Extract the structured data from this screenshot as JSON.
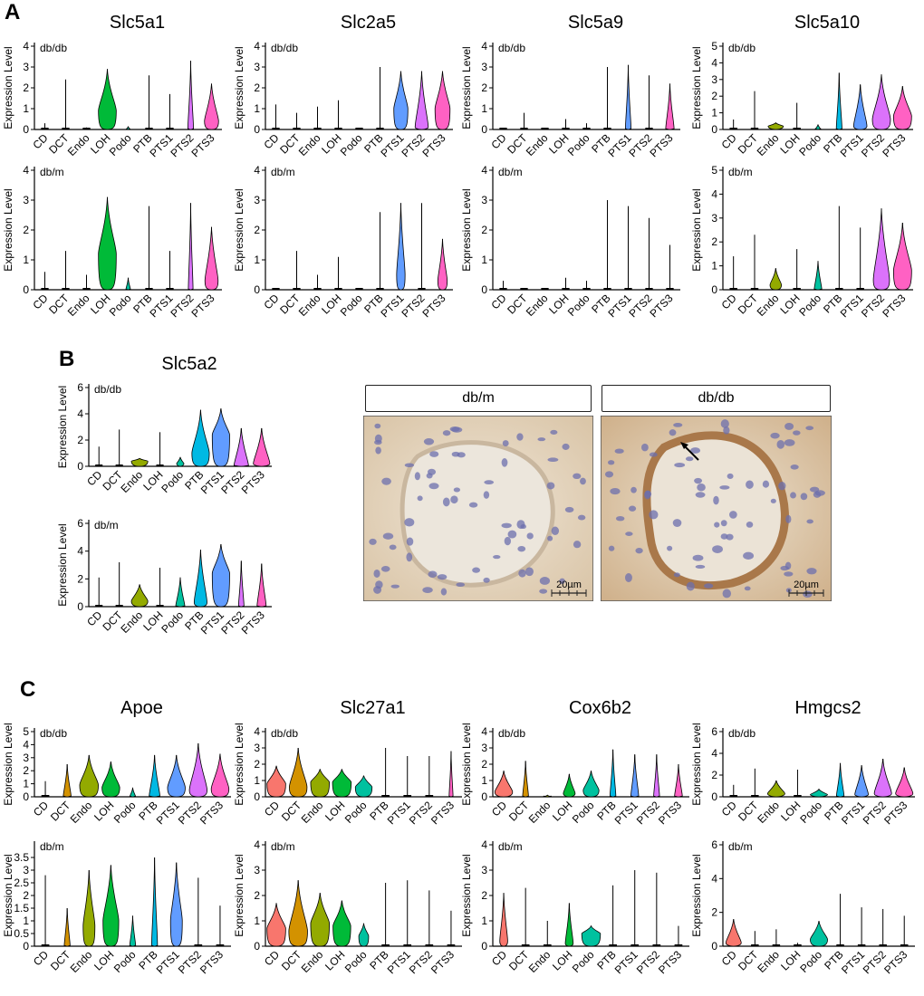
{
  "figure": {
    "panel_labels": {
      "a": "A",
      "b": "B",
      "c": "C"
    },
    "y_axis_label": "Expression Level",
    "cell_types": [
      "CD",
      "DCT",
      "Endo",
      "LOH",
      "Podo",
      "PTB",
      "PTS1",
      "PTS2",
      "PTS3"
    ],
    "colors": {
      "CD": "#F8766D",
      "DCT": "#D39200",
      "Endo": "#93AA00",
      "LOH": "#00BA38",
      "Podo": "#00C19F",
      "PTB": "#00B9E3",
      "PTS1": "#619CFF",
      "PTS2": "#DB72FB",
      "PTS3": "#FF61C3"
    }
  },
  "micrographs": {
    "left_header": "db/m",
    "right_header": "db/db",
    "scale_bar_text": "20µm"
  },
  "chart_data": [
    {
      "type": "violin",
      "gene": "Slc5a1",
      "condition": "db/db",
      "ylim": [
        0,
        4
      ],
      "yticks": [
        0,
        1,
        2,
        3,
        4
      ],
      "max": [
        0.3,
        2.4,
        0.1,
        2.9,
        0.15,
        2.6,
        1.7,
        3.3,
        2.2
      ],
      "width": [
        0.05,
        0.05,
        0.08,
        0.95,
        0.2,
        0.05,
        0.05,
        0.3,
        0.75
      ],
      "peak": [
        0,
        0,
        0,
        0.9,
        0,
        0,
        0,
        0,
        0.4
      ]
    },
    {
      "type": "violin",
      "gene": "Slc5a1",
      "condition": "db/m",
      "ylim": [
        0,
        4
      ],
      "yticks": [
        0,
        1,
        2,
        3,
        4
      ],
      "max": [
        0.6,
        1.3,
        0.5,
        3.1,
        0.4,
        2.8,
        1.3,
        2.9,
        2.1
      ],
      "width": [
        0.05,
        0.05,
        0.05,
        0.95,
        0.25,
        0.05,
        0.05,
        0.25,
        0.7
      ],
      "peak": [
        0,
        0,
        0,
        1.2,
        0,
        0,
        0,
        0,
        0.3
      ]
    },
    {
      "type": "violin",
      "gene": "Slc2a5",
      "condition": "db/db",
      "ylim": [
        0,
        4
      ],
      "yticks": [
        0,
        1,
        2,
        3,
        4
      ],
      "max": [
        1.2,
        0.8,
        1.1,
        1.4,
        0.05,
        3.0,
        2.8,
        2.8,
        2.8
      ],
      "width": [
        0.05,
        0.05,
        0.05,
        0.05,
        0.05,
        0.05,
        0.75,
        0.7,
        0.8
      ],
      "peak": [
        0,
        0,
        0,
        0,
        0,
        0,
        1.0,
        0.1,
        1.0
      ]
    },
    {
      "type": "violin",
      "gene": "Slc2a5",
      "condition": "db/m",
      "ylim": [
        0,
        4
      ],
      "yticks": [
        0,
        1,
        2,
        3,
        4
      ],
      "max": [
        0.05,
        1.3,
        0.5,
        1.1,
        0.05,
        2.6,
        2.9,
        2.9,
        1.7
      ],
      "width": [
        0.05,
        0.05,
        0.05,
        0.05,
        0.05,
        0.05,
        0.45,
        0.05,
        0.5
      ],
      "peak": [
        0,
        0,
        0,
        0,
        0,
        0,
        0.5,
        0,
        0.3
      ]
    },
    {
      "type": "violin",
      "gene": "Slc5a9",
      "condition": "db/db",
      "ylim": [
        0,
        4
      ],
      "yticks": [
        0,
        1,
        2,
        3,
        4
      ],
      "max": [
        0.05,
        0.8,
        0.05,
        0.5,
        0.3,
        3.0,
        3.1,
        2.6,
        2.2
      ],
      "width": [
        0.05,
        0.05,
        0.05,
        0.05,
        0.05,
        0.05,
        0.3,
        0.05,
        0.45
      ],
      "peak": [
        0,
        0,
        0,
        0,
        0,
        0,
        0,
        0,
        0
      ]
    },
    {
      "type": "violin",
      "gene": "Slc5a9",
      "condition": "db/m",
      "ylim": [
        0,
        4
      ],
      "yticks": [
        0,
        1,
        2,
        3,
        4
      ],
      "max": [
        0.3,
        0.05,
        0.05,
        0.4,
        0.3,
        3.0,
        2.8,
        2.4,
        1.5
      ],
      "width": [
        0.05,
        0.05,
        0.05,
        0.05,
        0.05,
        0.05,
        0.05,
        0.05,
        0.05
      ],
      "peak": [
        0,
        0,
        0,
        0,
        0,
        0,
        0,
        0,
        0
      ]
    },
    {
      "type": "violin",
      "gene": "Slc5a10",
      "condition": "db/db",
      "ylim": [
        0,
        5
      ],
      "yticks": [
        0,
        1,
        2,
        3,
        4,
        5
      ],
      "max": [
        0.6,
        2.3,
        0.4,
        1.6,
        0.3,
        3.4,
        2.7,
        3.3,
        2.6
      ],
      "width": [
        0.1,
        0.1,
        0.8,
        0.1,
        0.3,
        0.3,
        0.7,
        0.95,
        0.95
      ],
      "peak": [
        0,
        0,
        0.2,
        0,
        0,
        0,
        0.2,
        0.6,
        0.8
      ]
    },
    {
      "type": "violin",
      "gene": "Slc5a10",
      "condition": "db/m",
      "ylim": [
        0,
        5
      ],
      "yticks": [
        0,
        1,
        2,
        3,
        4,
        5
      ],
      "max": [
        1.4,
        2.3,
        0.9,
        1.7,
        1.2,
        3.5,
        2.6,
        3.4,
        2.8
      ],
      "width": [
        0.05,
        0.05,
        0.6,
        0.05,
        0.4,
        0.05,
        0.05,
        0.85,
        0.95
      ],
      "peak": [
        0,
        0,
        0.2,
        0,
        0,
        0,
        0,
        0.4,
        0.8
      ]
    },
    {
      "type": "violin",
      "gene": "Slc5a2",
      "condition": "db/db",
      "ylim": [
        0,
        6
      ],
      "yticks": [
        0,
        2,
        4,
        6
      ],
      "max": [
        1.5,
        2.8,
        0.6,
        2.6,
        0.7,
        4.3,
        4.4,
        2.9,
        2.9
      ],
      "width": [
        0.05,
        0.1,
        0.9,
        0.1,
        0.4,
        0.95,
        0.95,
        0.8,
        0.9
      ],
      "peak": [
        0,
        0,
        0.4,
        0,
        0.2,
        1.0,
        2.4,
        0,
        0.2
      ]
    },
    {
      "type": "violin",
      "gene": "Slc5a2",
      "condition": "db/m",
      "ylim": [
        0,
        6
      ],
      "yticks": [
        0,
        2,
        4,
        6
      ],
      "max": [
        2.1,
        3.2,
        1.6,
        2.8,
        2.1,
        4.1,
        4.5,
        3.3,
        3.1
      ],
      "width": [
        0.05,
        0.05,
        0.9,
        0.1,
        0.5,
        0.7,
        0.95,
        0.3,
        0.5
      ],
      "peak": [
        0,
        0,
        0.4,
        0,
        0,
        0.3,
        2.4,
        0,
        0
      ]
    },
    {
      "type": "violin",
      "gene": "Apoe",
      "condition": "db/db",
      "ylim": [
        0,
        5
      ],
      "yticks": [
        0,
        1,
        2,
        3,
        4,
        5
      ],
      "max": [
        1.2,
        2.5,
        3.2,
        2.7,
        0.7,
        3.2,
        3.2,
        4.1,
        3.3
      ],
      "width": [
        0.1,
        0.4,
        0.95,
        0.9,
        0.3,
        0.55,
        0.9,
        0.9,
        0.9
      ],
      "peak": [
        0,
        0,
        0.9,
        0.7,
        0,
        0,
        0.7,
        0.5,
        0.6
      ]
    },
    {
      "type": "violin",
      "gene": "Apoe",
      "condition": "db/m",
      "ylim": [
        0,
        4
      ],
      "yticks": [
        0,
        0.5,
        1,
        1.5,
        2,
        2.5,
        3,
        3.5
      ],
      "max": [
        2.8,
        1.5,
        3.0,
        3.2,
        1.2,
        3.5,
        3.3,
        2.7,
        1.6
      ],
      "width": [
        0.1,
        0.3,
        0.6,
        0.8,
        0.3,
        0.3,
        0.6,
        0.05,
        0.05
      ],
      "peak": [
        0,
        0,
        0.8,
        1.0,
        0,
        0,
        1.0,
        0,
        0
      ]
    },
    {
      "type": "violin",
      "gene": "Slc27a1",
      "condition": "db/db",
      "ylim": [
        0,
        4
      ],
      "yticks": [
        0,
        1,
        2,
        3,
        4
      ],
      "max": [
        1.9,
        3.0,
        1.7,
        1.7,
        1.3,
        3.0,
        2.5,
        2.5,
        2.8
      ],
      "width": [
        0.95,
        0.9,
        0.95,
        0.95,
        0.85,
        0.05,
        0.05,
        0.05,
        0.2
      ],
      "peak": [
        0.8,
        0.6,
        0.9,
        0.9,
        0.6,
        0,
        0,
        0,
        0
      ]
    },
    {
      "type": "violin",
      "gene": "Slc27a1",
      "condition": "db/m",
      "ylim": [
        0,
        4
      ],
      "yticks": [
        0,
        1,
        2,
        3,
        4
      ],
      "max": [
        1.7,
        2.6,
        2.1,
        1.8,
        0.9,
        2.5,
        2.6,
        2.2,
        1.4
      ],
      "width": [
        0.95,
        0.95,
        0.95,
        0.9,
        0.5,
        0.05,
        0.05,
        0.05,
        0.05
      ],
      "peak": [
        0.7,
        0.6,
        0.9,
        0.8,
        0.4,
        0,
        0,
        0,
        0
      ]
    },
    {
      "type": "violin",
      "gene": "Cox6b2",
      "condition": "db/db",
      "ylim": [
        0,
        4
      ],
      "yticks": [
        0,
        1,
        2,
        3,
        4
      ],
      "max": [
        1.6,
        2.2,
        0.1,
        1.4,
        1.6,
        2.9,
        2.6,
        2.6,
        2.0
      ],
      "width": [
        0.9,
        0.3,
        0.4,
        0.6,
        0.8,
        0.3,
        0.4,
        0.3,
        0.4
      ],
      "peak": [
        0.3,
        0,
        0,
        0.2,
        0.4,
        0,
        0,
        0,
        0
      ]
    },
    {
      "type": "violin",
      "gene": "Cox6b2",
      "condition": "db/m",
      "ylim": [
        0,
        4
      ],
      "yticks": [
        0,
        1,
        2,
        3,
        4
      ],
      "max": [
        2.1,
        2.3,
        1.0,
        1.7,
        0.8,
        2.4,
        3.0,
        2.9,
        0.8
      ],
      "width": [
        0.4,
        0.1,
        0.1,
        0.4,
        0.95,
        0.05,
        0.05,
        0.05,
        0.05
      ],
      "peak": [
        0.2,
        0,
        0,
        0.1,
        0.5,
        0,
        0,
        0,
        0
      ]
    },
    {
      "type": "violin",
      "gene": "Hmgcs2",
      "condition": "db/db",
      "ylim": [
        0,
        6
      ],
      "yticks": [
        0,
        2,
        4,
        6
      ],
      "max": [
        1.1,
        2.6,
        1.5,
        2.5,
        0.7,
        3.1,
        2.9,
        3.5,
        2.7
      ],
      "width": [
        0.05,
        0.1,
        0.9,
        0.1,
        0.9,
        0.4,
        0.7,
        0.9,
        0.9
      ],
      "peak": [
        0,
        0,
        0.3,
        0,
        0.2,
        0,
        0.2,
        0.3,
        0.3
      ]
    },
    {
      "type": "violin",
      "gene": "Hmgcs2",
      "condition": "db/m",
      "ylim": [
        0,
        6
      ],
      "yticks": [
        0,
        2,
        4,
        6
      ],
      "max": [
        1.6,
        0.9,
        1.0,
        0.2,
        1.5,
        3.1,
        2.3,
        2.2,
        1.8
      ],
      "width": [
        0.8,
        0.05,
        0.05,
        0.05,
        0.9,
        0.05,
        0.05,
        0.05,
        0.05
      ],
      "peak": [
        0.2,
        0,
        0,
        0,
        0.4,
        0,
        0,
        0,
        0
      ]
    }
  ]
}
